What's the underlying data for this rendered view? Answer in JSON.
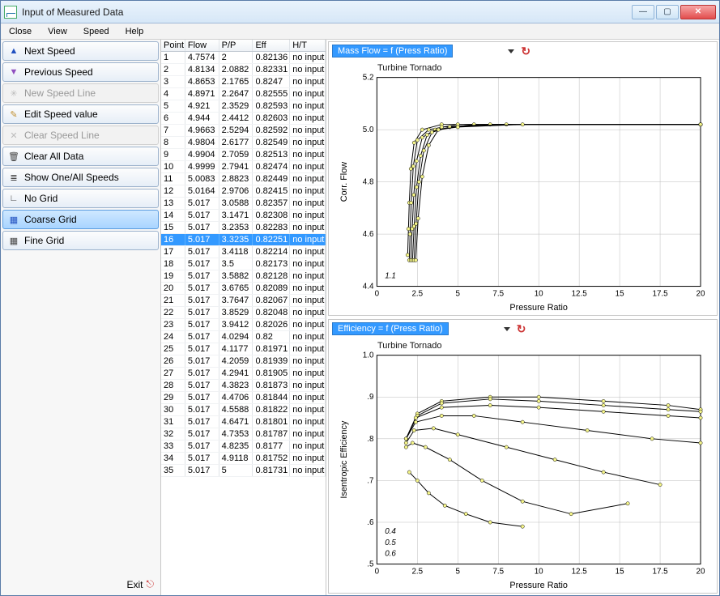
{
  "window": {
    "title": "Input of Measured Data"
  },
  "menu": {
    "items": [
      "Close",
      "View",
      "Speed",
      "Help"
    ]
  },
  "sidebar": {
    "buttons": [
      {
        "label": "Next Speed",
        "icon": "▲",
        "iconColor": "#2050c0",
        "enabled": true,
        "name": "next-speed-button"
      },
      {
        "label": "Previous Speed",
        "icon": "▼",
        "iconColor": "#9050c0",
        "enabled": true,
        "name": "previous-speed-button"
      },
      {
        "label": "New Speed Line",
        "icon": "✳",
        "iconColor": "#bbb",
        "enabled": false,
        "name": "new-speed-line-button"
      },
      {
        "label": "Edit Speed value",
        "icon": "✎",
        "iconColor": "#c09030",
        "enabled": true,
        "name": "edit-speed-value-button"
      },
      {
        "label": "Clear Speed Line",
        "icon": "✕",
        "iconColor": "#bbb",
        "enabled": false,
        "name": "clear-speed-line-button"
      },
      {
        "label": "Clear All Data",
        "icon": "🗑",
        "iconColor": "#444",
        "enabled": true,
        "name": "clear-all-data-button"
      },
      {
        "label": "Show One/All Speeds",
        "icon": "≣",
        "iconColor": "#444",
        "enabled": true,
        "name": "show-speeds-button"
      },
      {
        "label": "No Grid",
        "icon": "∟",
        "iconColor": "#444",
        "enabled": true,
        "name": "no-grid-button"
      },
      {
        "label": "Coarse Grid",
        "icon": "▦",
        "iconColor": "#2050c0",
        "enabled": true,
        "selected": true,
        "name": "coarse-grid-button"
      },
      {
        "label": "Fine Grid",
        "icon": "▦",
        "iconColor": "#444",
        "enabled": true,
        "name": "fine-grid-button"
      }
    ],
    "exit_label": "Exit"
  },
  "table": {
    "columns": [
      "Point",
      "Flow",
      "P/P",
      "Eff",
      "H/T"
    ],
    "selected_row": 16,
    "rows": [
      [
        1,
        "4.7574",
        "2",
        "0.82136",
        "no input"
      ],
      [
        2,
        "4.8134",
        "2.0882",
        "0.82331",
        "no input"
      ],
      [
        3,
        "4.8653",
        "2.1765",
        "0.8247",
        "no input"
      ],
      [
        4,
        "4.8971",
        "2.2647",
        "0.82555",
        "no input"
      ],
      [
        5,
        "4.921",
        "2.3529",
        "0.82593",
        "no input"
      ],
      [
        6,
        "4.944",
        "2.4412",
        "0.82603",
        "no input"
      ],
      [
        7,
        "4.9663",
        "2.5294",
        "0.82592",
        "no input"
      ],
      [
        8,
        "4.9804",
        "2.6177",
        "0.82549",
        "no input"
      ],
      [
        9,
        "4.9904",
        "2.7059",
        "0.82513",
        "no input"
      ],
      [
        10,
        "4.9999",
        "2.7941",
        "0.82474",
        "no input"
      ],
      [
        11,
        "5.0083",
        "2.8823",
        "0.82449",
        "no input"
      ],
      [
        12,
        "5.0164",
        "2.9706",
        "0.82415",
        "no input"
      ],
      [
        13,
        "5.017",
        "3.0588",
        "0.82357",
        "no input"
      ],
      [
        14,
        "5.017",
        "3.1471",
        "0.82308",
        "no input"
      ],
      [
        15,
        "5.017",
        "3.2353",
        "0.82283",
        "no input"
      ],
      [
        16,
        "5.017",
        "3.3235",
        "0.82251",
        "no input"
      ],
      [
        17,
        "5.017",
        "3.4118",
        "0.82214",
        "no input"
      ],
      [
        18,
        "5.017",
        "3.5",
        "0.82173",
        "no input"
      ],
      [
        19,
        "5.017",
        "3.5882",
        "0.82128",
        "no input"
      ],
      [
        20,
        "5.017",
        "3.6765",
        "0.82089",
        "no input"
      ],
      [
        21,
        "5.017",
        "3.7647",
        "0.82067",
        "no input"
      ],
      [
        22,
        "5.017",
        "3.8529",
        "0.82048",
        "no input"
      ],
      [
        23,
        "5.017",
        "3.9412",
        "0.82026",
        "no input"
      ],
      [
        24,
        "5.017",
        "4.0294",
        "0.82",
        "no input"
      ],
      [
        25,
        "5.017",
        "4.1177",
        "0.81971",
        "no input"
      ],
      [
        26,
        "5.017",
        "4.2059",
        "0.81939",
        "no input"
      ],
      [
        27,
        "5.017",
        "4.2941",
        "0.81905",
        "no input"
      ],
      [
        28,
        "5.017",
        "4.3823",
        "0.81873",
        "no input"
      ],
      [
        29,
        "5.017",
        "4.4706",
        "0.81844",
        "no input"
      ],
      [
        30,
        "5.017",
        "4.5588",
        "0.81822",
        "no input"
      ],
      [
        31,
        "5.017",
        "4.6471",
        "0.81801",
        "no input"
      ],
      [
        32,
        "5.017",
        "4.7353",
        "0.81787",
        "no input"
      ],
      [
        33,
        "5.017",
        "4.8235",
        "0.8177",
        "no input"
      ],
      [
        34,
        "5.017",
        "4.9118",
        "0.81752",
        "no input"
      ],
      [
        35,
        "5.017",
        "5",
        "0.81731",
        "no input"
      ]
    ]
  },
  "chart1": {
    "selector_label": "Mass Flow = f (Press Ratio)",
    "title": "Turbine Tornado",
    "xlabel": "Pressure Ratio",
    "ylabel": "Corr. Flow",
    "xlim": [
      0,
      20
    ],
    "xtick_step": 2.5,
    "ylim": [
      4.4,
      5.2
    ],
    "ytick_step": 0.2,
    "grid_color": "#bbbbbb",
    "marker_fill": "#f5f58a",
    "annotations": [
      "1.1"
    ],
    "series": [
      {
        "pts": [
          [
            1.9,
            4.52
          ],
          [
            1.95,
            4.62
          ],
          [
            2.0,
            4.72
          ],
          [
            2.1,
            4.85
          ],
          [
            2.3,
            4.95
          ],
          [
            2.8,
            5.0
          ],
          [
            4,
            5.02
          ],
          [
            20,
            5.02
          ]
        ]
      },
      {
        "pts": [
          [
            2.0,
            4.5
          ],
          [
            2.05,
            4.6
          ],
          [
            2.12,
            4.72
          ],
          [
            2.25,
            4.86
          ],
          [
            2.5,
            4.96
          ],
          [
            3.2,
            5.0
          ],
          [
            5,
            5.02
          ],
          [
            20,
            5.02
          ]
        ]
      },
      {
        "pts": [
          [
            2.1,
            4.5
          ],
          [
            2.18,
            4.62
          ],
          [
            2.28,
            4.75
          ],
          [
            2.45,
            4.88
          ],
          [
            2.8,
            4.97
          ],
          [
            3.6,
            5.0
          ],
          [
            6,
            5.02
          ],
          [
            20,
            5.02
          ]
        ]
      },
      {
        "pts": [
          [
            2.2,
            4.5
          ],
          [
            2.3,
            4.63
          ],
          [
            2.45,
            4.78
          ],
          [
            2.7,
            4.9
          ],
          [
            3.1,
            4.98
          ],
          [
            4.0,
            5.01
          ],
          [
            7,
            5.02
          ],
          [
            20,
            5.02
          ]
        ]
      },
      {
        "pts": [
          [
            2.3,
            4.5
          ],
          [
            2.42,
            4.64
          ],
          [
            2.6,
            4.8
          ],
          [
            2.9,
            4.92
          ],
          [
            3.4,
            4.99
          ],
          [
            4.5,
            5.01
          ],
          [
            8,
            5.02
          ],
          [
            20,
            5.02
          ]
        ]
      },
      {
        "pts": [
          [
            2.4,
            4.5
          ],
          [
            2.55,
            4.66
          ],
          [
            2.8,
            4.82
          ],
          [
            3.2,
            4.94
          ],
          [
            3.8,
            5.0
          ],
          [
            5.0,
            5.01
          ],
          [
            9,
            5.02
          ],
          [
            20,
            5.02
          ]
        ]
      }
    ]
  },
  "chart2": {
    "selector_label": "Efficiency = f (Press Ratio)",
    "title": "Turbine Tornado",
    "xlabel": "Pressure Ratio",
    "ylabel": "Isentropic Efficiency",
    "xlim": [
      0,
      20
    ],
    "xtick_step": 2.5,
    "ylim": [
      0.5,
      1.0
    ],
    "ytick_step": 0.1,
    "grid_color": "#bbbbbb",
    "marker_fill": "#f5f58a",
    "annotations": [
      "0.6",
      "0.5",
      "0.4"
    ],
    "series": [
      {
        "pts": [
          [
            1.8,
            0.8
          ],
          [
            2.5,
            0.86
          ],
          [
            4,
            0.89
          ],
          [
            7,
            0.9
          ],
          [
            10,
            0.9
          ],
          [
            14,
            0.89
          ],
          [
            18,
            0.88
          ],
          [
            20,
            0.87
          ]
        ]
      },
      {
        "pts": [
          [
            1.8,
            0.8
          ],
          [
            2.5,
            0.855
          ],
          [
            4,
            0.885
          ],
          [
            7,
            0.895
          ],
          [
            10,
            0.89
          ],
          [
            14,
            0.88
          ],
          [
            18,
            0.87
          ],
          [
            20,
            0.865
          ]
        ]
      },
      {
        "pts": [
          [
            1.8,
            0.8
          ],
          [
            2.4,
            0.85
          ],
          [
            4,
            0.875
          ],
          [
            7,
            0.88
          ],
          [
            10,
            0.875
          ],
          [
            14,
            0.865
          ],
          [
            18,
            0.855
          ],
          [
            20,
            0.85
          ]
        ]
      },
      {
        "pts": [
          [
            1.8,
            0.8
          ],
          [
            2.4,
            0.84
          ],
          [
            4,
            0.855
          ],
          [
            6,
            0.855
          ],
          [
            9,
            0.84
          ],
          [
            13,
            0.82
          ],
          [
            17,
            0.8
          ],
          [
            20,
            0.79
          ]
        ]
      },
      {
        "pts": [
          [
            1.8,
            0.79
          ],
          [
            2.3,
            0.82
          ],
          [
            3.5,
            0.825
          ],
          [
            5,
            0.81
          ],
          [
            8,
            0.78
          ],
          [
            11,
            0.75
          ],
          [
            14,
            0.72
          ],
          [
            17.5,
            0.69
          ]
        ]
      },
      {
        "pts": [
          [
            1.8,
            0.78
          ],
          [
            2.2,
            0.79
          ],
          [
            3,
            0.78
          ],
          [
            4.5,
            0.75
          ],
          [
            6.5,
            0.7
          ],
          [
            9,
            0.65
          ],
          [
            12,
            0.62
          ],
          [
            15.5,
            0.645
          ]
        ]
      },
      {
        "pts": [
          [
            2.0,
            0.72
          ],
          [
            2.5,
            0.7
          ],
          [
            3.2,
            0.67
          ],
          [
            4.2,
            0.64
          ],
          [
            5.5,
            0.62
          ],
          [
            7,
            0.6
          ],
          [
            9,
            0.59
          ]
        ]
      }
    ]
  }
}
